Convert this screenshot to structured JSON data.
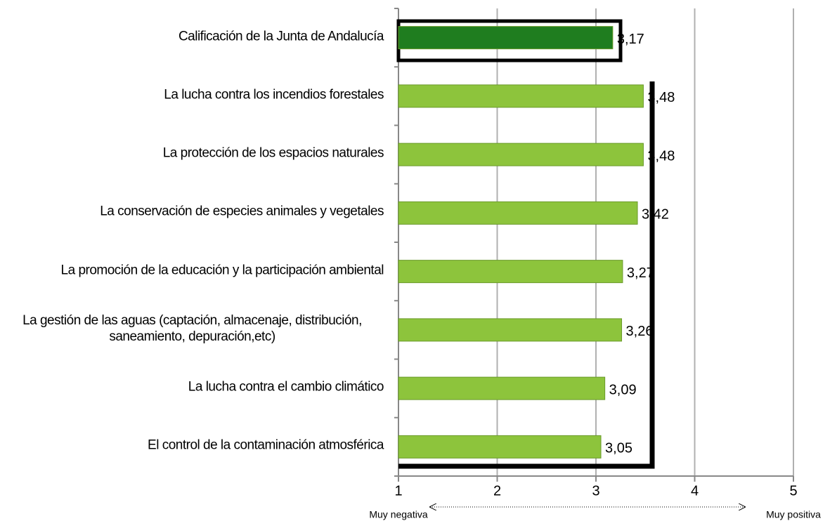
{
  "chart_data": {
    "type": "hbar",
    "categories": [
      "Calificación de la Junta de Andalucía",
      "La lucha contra los incendios forestales",
      "La protección de los espacios naturales",
      "La conservación de especies animales y vegetales",
      "La promoción de la educación y la participación ambiental",
      "La gestión de las aguas (captación, almacenaje, distribución, saneamiento, depuración,etc)",
      "La lucha contra el cambio climático",
      "El control de la contaminación atmosférica"
    ],
    "values": [
      3.17,
      3.48,
      3.48,
      3.42,
      3.27,
      3.26,
      3.09,
      3.05
    ],
    "value_labels": [
      "3,17",
      "3,48",
      "3,48",
      "3,42",
      "3,27",
      "3,26",
      "3,09",
      "3,05"
    ],
    "colors": [
      "#1f7d1f",
      "#8dc43c",
      "#8dc43c",
      "#8dc43c",
      "#8dc43c",
      "#8dc43c",
      "#8dc43c",
      "#8dc43c"
    ],
    "xlim": [
      1,
      5
    ],
    "xticks": [
      1,
      2,
      3,
      4,
      5
    ],
    "grid": true,
    "annotations": [
      "Muy negativa",
      "Muy positiva"
    ]
  }
}
